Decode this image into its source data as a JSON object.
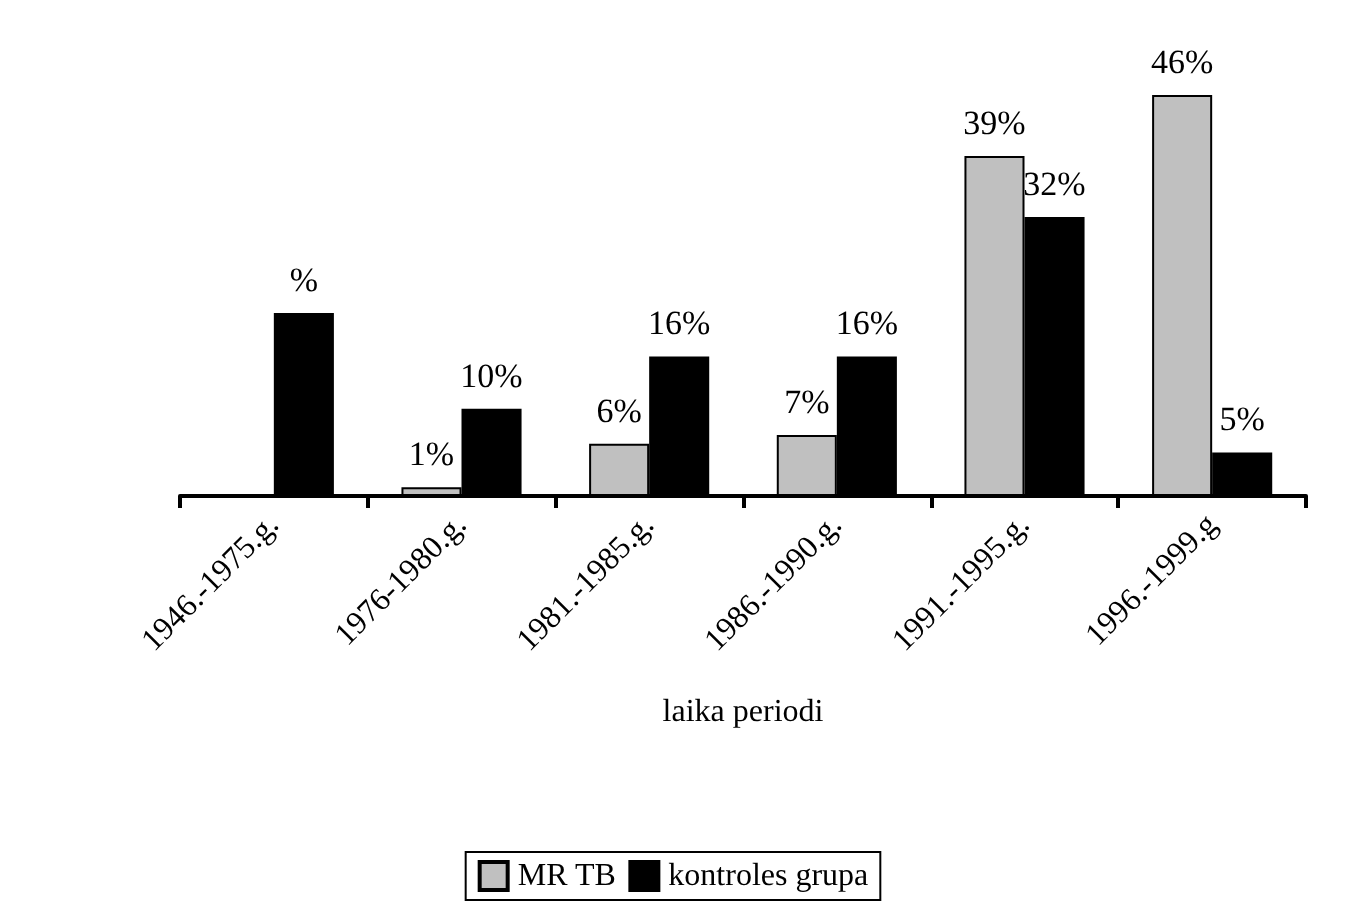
{
  "chart_data": {
    "type": "bar",
    "xlabel": "laika periodi",
    "categories": [
      "1946.-1975.g.",
      "1976-1980.g.",
      "1981.-1985.g.",
      "1986.-1990.g.",
      "1991.-1995.g.",
      "1996.-1999.g"
    ],
    "series": [
      {
        "name": "MR TB",
        "color": "#c0c0c0",
        "values": [
          null,
          1,
          6,
          7,
          39,
          46
        ],
        "value_labels": [
          null,
          "1%",
          "6%",
          "7%",
          "39%",
          "46%"
        ]
      },
      {
        "name": "kontroles grupa",
        "color": "#000000",
        "values": [
          21,
          10,
          16,
          16,
          32,
          5
        ],
        "value_labels": [
          "%",
          "10%",
          "16%",
          "16%",
          "32%",
          "5%"
        ]
      }
    ],
    "legend": "bottom"
  }
}
